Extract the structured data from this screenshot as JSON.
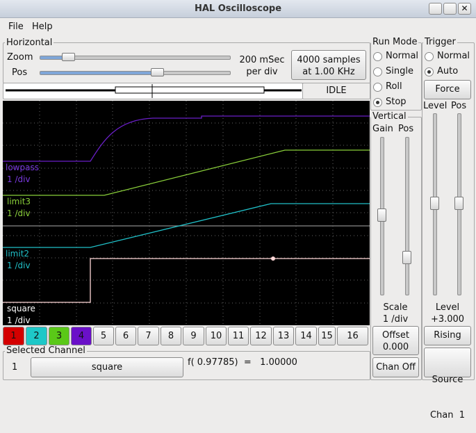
{
  "window": {
    "title": "HAL Oscilloscope"
  },
  "menu": [
    "File",
    "Help"
  ],
  "horizontal": {
    "label": "Horizontal",
    "zoom_label": "Zoom",
    "pos_label": "Pos",
    "rate_lines": [
      "200 mSec",
      "per div"
    ],
    "samples_lines": [
      "4000 samples",
      "at 1.00 KHz"
    ],
    "status": "IDLE"
  },
  "run_mode": {
    "label": "Run Mode",
    "options": [
      "Normal",
      "Single",
      "Roll",
      "Stop"
    ]
  },
  "trigger": {
    "label": "Trigger",
    "options": [
      "Normal",
      "Auto"
    ],
    "force": "Force",
    "level_label": "Level",
    "pos_label": "Pos",
    "level_heading": "Level",
    "level_value": "+3.000",
    "edge": "Rising",
    "source_lines": [
      "Source",
      "Chan  1"
    ]
  },
  "vertical": {
    "label": "Vertical",
    "gain_label": "Gain",
    "pos_label": "Pos",
    "scale_label": "Scale",
    "scale_value": "1 /div",
    "offset_label": "Offset",
    "offset_value": "0.000",
    "chan_off": "Chan Off"
  },
  "traces": [
    {
      "name": "lowpass",
      "scale": "1 /div"
    },
    {
      "name": "limit3",
      "scale": "1 /div"
    },
    {
      "name": "limit2",
      "scale": "1 /div"
    },
    {
      "name": "square",
      "scale": "1 /div"
    }
  ],
  "channels": [
    "1",
    "2",
    "3",
    "4",
    "5",
    "6",
    "7",
    "8",
    "9",
    "10",
    "11",
    "12",
    "13",
    "14",
    "15",
    "16"
  ],
  "selected_channel": {
    "label": "Selected Channel",
    "number": "1",
    "name": "square",
    "readout": "f( 0.97785)  =   1.00000"
  }
}
